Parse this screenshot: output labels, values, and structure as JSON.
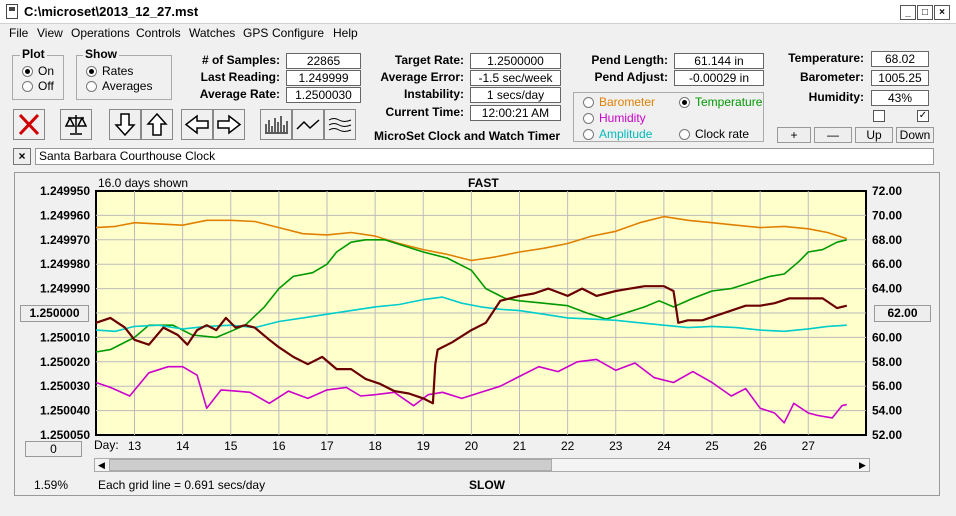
{
  "window": {
    "title": "C:\\microset\\2013_12_27.mst",
    "min": "_",
    "max": "□",
    "close": "×"
  },
  "menu": [
    "File",
    "View",
    "Operations",
    "Controls",
    "Watches",
    "GPS",
    "Configure",
    "Help"
  ],
  "plot_group": {
    "label": "Plot",
    "on": "On",
    "off": "Off",
    "selected": "On"
  },
  "show_group": {
    "label": "Show",
    "rates": "Rates",
    "averages": "Averages",
    "selected": "Rates"
  },
  "stats": {
    "samples_label": "# of Samples:",
    "samples": "22865",
    "last_label": "Last Reading:",
    "last": "1.249999",
    "avg_rate_label": "Average Rate:",
    "avg_rate": "1.2500030",
    "target_label": "Target Rate:",
    "target": "1.2500000",
    "avg_err_label": "Average Error:",
    "avg_err": "-1.5 sec/week",
    "instab_label": "Instability:",
    "instab": "1 secs/day",
    "time_label": "Current Time:",
    "time": "12:00:21 AM",
    "pend_len_label": "Pend Length:",
    "pend_len": "61.144 in",
    "pend_adj_label": "Pend Adjust:",
    "pend_adj": "-0.00029 in",
    "temp_label": "Temperature:",
    "temp": "68.02",
    "baro_label": "Barometer:",
    "baro": "1005.25",
    "hum_label": "Humidity:",
    "hum": "43%"
  },
  "app_name": "MicroSet Clock and Watch Timer",
  "sensors": {
    "barometer": "Barometer",
    "temperature": "Temperature",
    "humidity": "Humidity",
    "amplitude": "Amplitude",
    "clock_rate": "Clock rate",
    "selected": "Temperature",
    "colors": {
      "barometer": "#e08000",
      "temperature": "#009900",
      "humidity": "#cc00cc",
      "amplitude": "#00cccc",
      "clock_rate": "#000000"
    }
  },
  "scale_buttons": {
    "plus": "+",
    "minus": "—",
    "up": "Up",
    "down": "Down"
  },
  "watch_name": "Santa Barbara Courthouse Clock",
  "clear_label": "×",
  "chart_data": {
    "type": "line",
    "days_shown": "16.0 days shown",
    "top_label": "FAST",
    "bottom_label": "SLOW",
    "grid_note": "Each grid line = 0.691 secs/day",
    "percent": "1.59%",
    "left_button": "1.250000",
    "right_button": "62.00",
    "zero_button": "0",
    "x_prefix": "Day:",
    "x_ticks": [
      "13",
      "14",
      "15",
      "16",
      "17",
      "18",
      "19",
      "20",
      "21",
      "22",
      "23",
      "24",
      "25",
      "26",
      "27"
    ],
    "xlim": [
      12.2,
      28.2
    ],
    "y_left_ticks": [
      "1.249950",
      "1.249960",
      "1.249970",
      "1.249980",
      "1.249990",
      "1.250000",
      "1.250010",
      "1.250020",
      "1.250030",
      "1.250040",
      "1.250050"
    ],
    "y_left_range": [
      1.24995,
      1.25005
    ],
    "y_right_ticks": [
      "72.00",
      "70.00",
      "68.00",
      "66.00",
      "64.00",
      "62.00",
      "60.00",
      "58.00",
      "56.00",
      "54.00",
      "52.00"
    ],
    "y_right_range": [
      52,
      72
    ],
    "series": [
      {
        "key": "barometer",
        "color": "#e08000",
        "axis": "right",
        "x": [
          12.2,
          12.6,
          13.0,
          13.5,
          14.0,
          14.5,
          15.0,
          15.5,
          16.0,
          16.5,
          17.0,
          17.5,
          18.0,
          18.5,
          19.0,
          19.5,
          20.0,
          20.5,
          21.0,
          21.5,
          22.0,
          22.5,
          23.0,
          23.5,
          24.0,
          24.5,
          25.0,
          25.5,
          26.0,
          26.5,
          27.0,
          27.4,
          27.8
        ],
        "y": [
          69.0,
          69.1,
          69.4,
          69.3,
          69.2,
          69.6,
          69.6,
          69.5,
          69.0,
          68.5,
          68.4,
          68.6,
          68.3,
          67.7,
          67.2,
          66.8,
          66.3,
          66.6,
          67.0,
          67.3,
          67.7,
          68.3,
          68.7,
          69.4,
          69.9,
          69.6,
          69.4,
          69.2,
          69.0,
          69.1,
          68.9,
          68.6,
          68.1
        ]
      },
      {
        "key": "temperature",
        "color": "#009900",
        "axis": "right",
        "x": [
          12.2,
          12.5,
          13.0,
          13.3,
          13.8,
          14.2,
          14.7,
          15.0,
          15.3,
          15.7,
          16.0,
          16.3,
          16.7,
          17.0,
          17.2,
          17.5,
          17.8,
          18.2,
          18.6,
          19.0,
          19.5,
          20.0,
          20.3,
          20.7,
          21.0,
          21.5,
          22.0,
          22.4,
          22.8,
          23.2,
          23.6,
          23.9,
          24.2,
          24.6,
          25.0,
          25.4,
          25.8,
          26.2,
          26.5,
          26.8,
          27.0,
          27.3,
          27.6,
          27.8
        ],
        "y": [
          58.8,
          59.0,
          60.0,
          61.0,
          61.0,
          60.2,
          60.0,
          60.5,
          61.0,
          62.5,
          64.0,
          65.0,
          65.3,
          66.0,
          67.0,
          67.8,
          68.0,
          68.0,
          67.5,
          67.0,
          66.5,
          65.5,
          64.0,
          63.2,
          63.0,
          62.8,
          62.6,
          62.0,
          61.5,
          62.0,
          62.5,
          63.0,
          62.5,
          63.2,
          63.8,
          64.0,
          64.5,
          65.0,
          65.2,
          66.2,
          67.0,
          67.2,
          67.8,
          68.0
        ]
      },
      {
        "key": "humidity",
        "color": "#cc00cc",
        "axis": "right",
        "x": [
          12.2,
          12.5,
          12.9,
          13.3,
          13.7,
          14.0,
          14.3,
          14.5,
          14.8,
          15.1,
          15.4,
          15.8,
          16.2,
          16.6,
          17.0,
          17.4,
          17.7,
          18.0,
          18.4,
          18.8,
          19.1,
          19.4,
          19.8,
          20.2,
          20.6,
          21.0,
          21.4,
          21.8,
          22.2,
          22.6,
          23.0,
          23.4,
          23.8,
          24.2,
          24.6,
          25.0,
          25.4,
          25.7,
          26.0,
          26.3,
          26.5,
          26.7,
          27.0,
          27.2,
          27.5,
          27.7,
          27.8
        ],
        "y": [
          56.3,
          55.9,
          55.2,
          57.1,
          57.6,
          57.6,
          56.9,
          54.2,
          55.7,
          55.6,
          55.5,
          54.6,
          55.6,
          55.0,
          55.7,
          55.9,
          55.2,
          55.3,
          55.5,
          54.4,
          55.3,
          55.5,
          55.0,
          55.5,
          56.0,
          56.8,
          57.6,
          57.2,
          58.0,
          58.2,
          57.3,
          57.9,
          56.7,
          56.3,
          57.2,
          56.3,
          55.2,
          55.8,
          54.2,
          53.8,
          53.0,
          54.6,
          53.8,
          53.6,
          53.4,
          54.4,
          54.5
        ]
      },
      {
        "key": "amplitude",
        "color": "#00cccc",
        "axis": "right",
        "x": [
          12.2,
          12.6,
          13.0,
          13.5,
          14.0,
          14.5,
          15.0,
          15.5,
          16.0,
          16.5,
          17.0,
          17.5,
          18.0,
          18.5,
          19.0,
          19.4,
          19.8,
          20.2,
          20.6,
          21.0,
          21.5,
          22.0,
          22.5,
          23.0,
          23.5,
          24.0,
          24.5,
          25.0,
          25.5,
          26.0,
          26.5,
          27.0,
          27.4,
          27.8
        ],
        "y": [
          60.6,
          60.5,
          60.9,
          61.0,
          60.7,
          60.9,
          61.0,
          60.8,
          61.3,
          61.6,
          61.9,
          62.2,
          62.5,
          62.7,
          63.1,
          63.3,
          62.8,
          62.5,
          62.3,
          62.2,
          61.9,
          61.6,
          61.5,
          61.4,
          61.2,
          61.0,
          60.8,
          60.9,
          60.8,
          60.6,
          60.5,
          60.7,
          60.9,
          61.0
        ]
      },
      {
        "key": "clock_rate",
        "color": "#6a0000",
        "axis": "left",
        "x": [
          12.2,
          12.5,
          12.8,
          13.0,
          13.3,
          13.6,
          13.9,
          14.1,
          14.3,
          14.5,
          14.7,
          14.9,
          15.1,
          15.3,
          15.5,
          15.8,
          16.0,
          16.3,
          16.6,
          16.9,
          17.2,
          17.5,
          17.8,
          18.1,
          18.4,
          18.7,
          19.0,
          19.2,
          19.25,
          19.3,
          19.6,
          20.0,
          20.3,
          20.6,
          21.0,
          21.3,
          21.6,
          22.0,
          22.3,
          22.6,
          23.0,
          23.3,
          23.6,
          24.0,
          24.2,
          24.3,
          24.5,
          24.8,
          25.1,
          25.4,
          25.7,
          26.0,
          26.3,
          26.6,
          27.0,
          27.3,
          27.6,
          27.8
        ],
        "y": [
          1.250004,
          1.250002,
          1.250006,
          1.250011,
          1.250013,
          1.250006,
          1.250009,
          1.250013,
          1.250007,
          1.250005,
          1.250007,
          1.250002,
          1.250006,
          1.250005,
          1.250006,
          1.250011,
          1.250014,
          1.250018,
          1.250021,
          1.250018,
          1.250023,
          1.250023,
          1.250027,
          1.250029,
          1.250032,
          1.250033,
          1.250035,
          1.250037,
          1.250021,
          1.250015,
          1.250012,
          1.250007,
          1.250004,
          1.249995,
          1.249993,
          1.249992,
          1.24999,
          1.249993,
          1.24999,
          1.249993,
          1.249991,
          1.24999,
          1.249989,
          1.249989,
          1.249991,
          1.250004,
          1.250003,
          1.250003,
          1.250001,
          1.249999,
          1.249997,
          1.249997,
          1.249996,
          1.249994,
          1.249994,
          1.249994,
          1.249998,
          1.249997
        ]
      }
    ]
  }
}
